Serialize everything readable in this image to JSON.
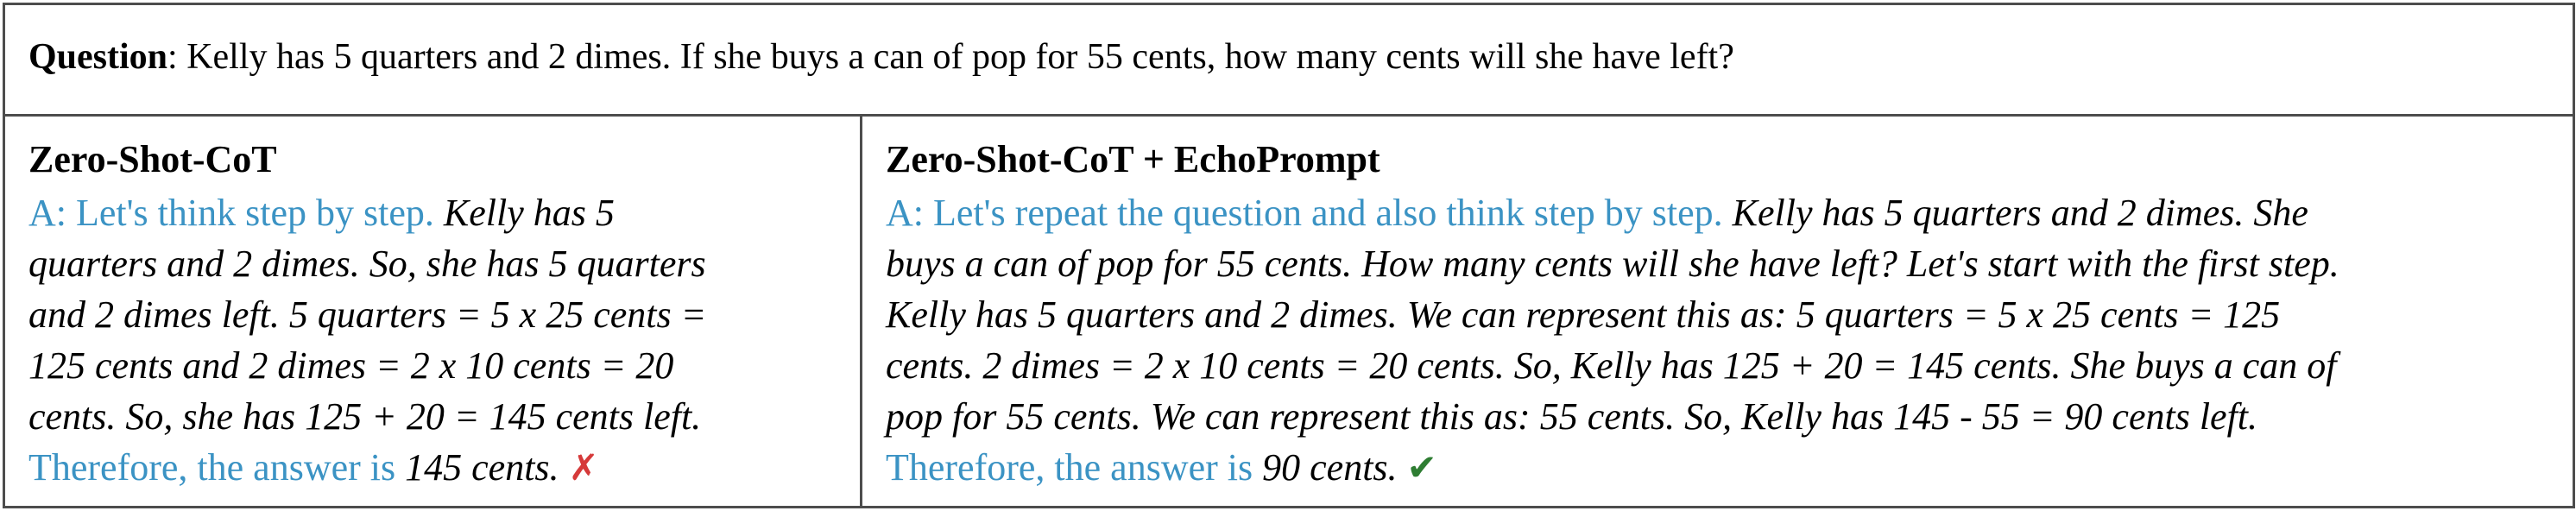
{
  "question": {
    "label": "Question",
    "text": ": Kelly has 5 quarters and 2 dimes. If she buys a can of pop for 55 cents, how many cents will she have left?"
  },
  "left": {
    "title": "Zero-Shot-CoT",
    "prompt": "A: Let's think step by step.",
    "line1_reasoning": "Kelly has 5",
    "line2": "quarters and 2 dimes. So, she has 5 quarters",
    "line3": "and 2 dimes left. 5 quarters = 5 x 25 cents =",
    "line4": "125 cents and 2 dimes = 2 x 10 cents = 20",
    "line5": "cents. So, she has 125 + 20 = 145 cents left.",
    "answer_prefix": "Therefore, the answer is",
    "answer": "145 cents.",
    "mark": "✗",
    "mark_color": "#d63a3a"
  },
  "right": {
    "title": "Zero-Shot-CoT + EchoPrompt",
    "prompt": "A: Let's repeat the question and also think step by step.",
    "line1_reasoning": "Kelly has 5 quarters and 2 dimes. She",
    "line2": "buys a can of pop for 55 cents. How many cents will she have left? Let's start with the first step.",
    "line3": "Kelly has 5 quarters and 2 dimes. We can represent this as: 5 quarters = 5 x 25 cents = 125",
    "line4": "cents. 2 dimes = 2 x 10 cents = 20 cents. So, Kelly has 125 + 20 = 145 cents. She buys a can of",
    "line5": "pop for 55 cents. We can represent this as: 55 cents. So, Kelly has 145 - 55 = 90 cents left.",
    "answer_prefix": "Therefore, the answer is",
    "answer": "90 cents.",
    "mark": "✔",
    "mark_color": "#2e7d32"
  },
  "colors": {
    "prompt": "#3b93c4",
    "border": "#4d4d4d"
  }
}
